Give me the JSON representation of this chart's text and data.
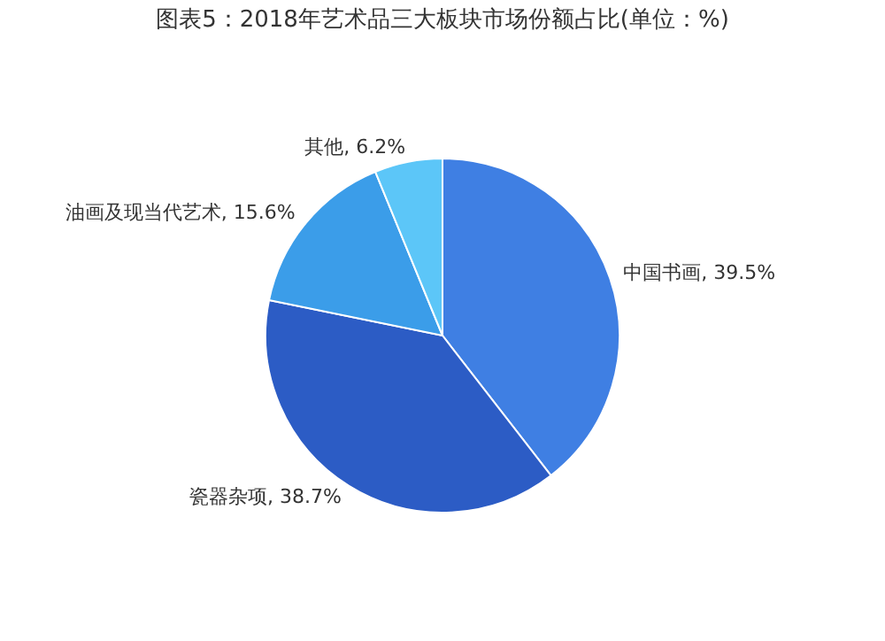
{
  "chart_data": {
    "type": "pie",
    "title": "图表5：2018年艺术品三大板块市场份额占比(单位：%)",
    "categories": [
      "中国书画",
      "瓷器杂项",
      "油画及现当代艺术",
      "其他"
    ],
    "values": [
      39.5,
      38.7,
      15.6,
      6.2
    ],
    "colors": [
      "#3f7fe3",
      "#2c5cc5",
      "#3b9de9",
      "#5cc6f8"
    ],
    "value_labels": [
      "39.5%",
      "38.7%",
      "15.6%",
      "6.2%"
    ]
  }
}
